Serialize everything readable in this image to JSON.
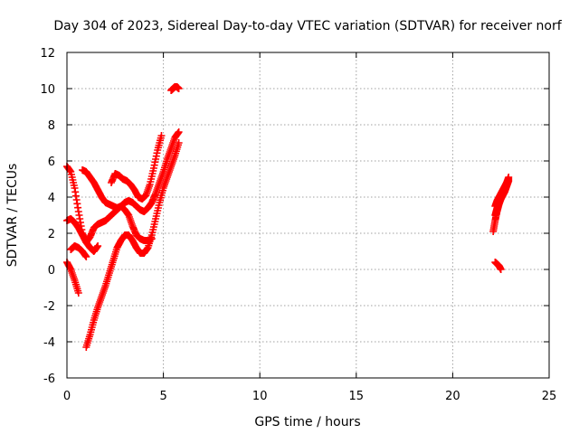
{
  "chart_data": {
    "type": "scatter",
    "title": "Day 304 of 2023, Sidereal Day-to-day VTEC variation (SDTVAR) for receiver norf",
    "xlabel": "GPS time / hours",
    "ylabel": "SDTVAR / TECUs",
    "xlim": [
      0,
      25
    ],
    "ylim": [
      -6,
      12
    ],
    "x_ticks": [
      0,
      5,
      10,
      15,
      20,
      25
    ],
    "y_ticks": [
      -6,
      -4,
      -2,
      0,
      2,
      4,
      6,
      8,
      10,
      12
    ],
    "x_tick_labels": [
      "0",
      "5",
      "10",
      "15",
      "20",
      "25"
    ],
    "y_tick_labels": [
      "-6",
      "-4",
      "-2",
      "0",
      "2",
      "4",
      "6",
      "8",
      "10",
      "12"
    ],
    "grid": true,
    "marker": "plus",
    "color": "#ff0000",
    "series": [
      {
        "x": [
          0.0,
          0.2,
          0.4,
          0.6,
          0.8,
          1.0,
          1.2,
          1.4,
          1.6,
          1.8,
          2.0,
          2.2,
          2.4,
          2.6,
          2.8,
          3.0,
          3.2,
          3.4,
          3.6,
          3.8,
          4.0,
          4.2,
          4.4,
          4.6,
          4.8,
          5.0,
          5.2,
          5.4,
          5.6,
          5.8
        ],
        "y": [
          5.7,
          5.4,
          4.5,
          3.2,
          2.0,
          1.5,
          1.8,
          2.3,
          2.5,
          2.6,
          2.7,
          2.9,
          3.1,
          3.3,
          3.5,
          3.7,
          3.8,
          3.7,
          3.5,
          3.3,
          3.2,
          3.4,
          3.7,
          4.2,
          4.8,
          5.4,
          6.1,
          6.7,
          7.3,
          7.6
        ]
      },
      {
        "x": [
          0.0,
          0.2,
          0.4,
          0.6,
          0.8,
          1.0,
          1.2,
          1.4,
          1.6
        ],
        "y": [
          2.7,
          2.8,
          2.6,
          2.3,
          1.9,
          1.5,
          1.2,
          1.0,
          1.3
        ]
      },
      {
        "x": [
          0.0,
          0.2,
          0.4,
          0.6
        ],
        "y": [
          0.4,
          0.0,
          -0.6,
          -1.3
        ]
      },
      {
        "x": [
          0.2,
          0.4,
          0.6,
          0.8,
          1.0
        ],
        "y": [
          1.1,
          1.3,
          1.2,
          1.0,
          0.7
        ]
      },
      {
        "x": [
          0.8,
          1.0,
          1.2,
          1.4,
          1.6,
          1.8,
          2.0,
          2.2,
          2.4,
          2.6,
          2.8,
          3.0,
          3.2,
          3.4,
          3.6,
          3.8,
          4.0,
          4.2,
          4.4
        ],
        "y": [
          5.5,
          5.4,
          5.1,
          4.8,
          4.4,
          4.0,
          3.7,
          3.6,
          3.5,
          3.4,
          3.5,
          3.3,
          3.0,
          2.4,
          1.9,
          1.7,
          1.6,
          1.6,
          1.7
        ]
      },
      {
        "x": [
          2.3,
          2.5,
          2.7,
          2.9,
          3.1,
          3.3,
          3.5,
          3.7,
          3.9,
          4.1,
          4.3,
          4.5,
          4.7,
          4.9
        ],
        "y": [
          4.8,
          5.3,
          5.2,
          5.0,
          4.9,
          4.7,
          4.4,
          4.0,
          3.9,
          4.1,
          4.7,
          5.6,
          6.6,
          7.4
        ]
      },
      {
        "x": [
          1.0,
          1.2,
          1.4,
          1.6,
          1.8,
          2.0,
          2.2,
          2.4,
          2.6,
          2.8,
          3.0,
          3.2,
          3.4,
          3.6,
          3.8,
          4.0,
          4.2,
          4.4,
          4.6,
          4.8,
          5.0,
          5.2,
          5.4,
          5.6,
          5.8
        ],
        "y": [
          -4.3,
          -3.6,
          -2.8,
          -2.1,
          -1.5,
          -0.9,
          -0.2,
          0.5,
          1.2,
          1.6,
          1.9,
          1.9,
          1.6,
          1.2,
          0.9,
          0.9,
          1.2,
          1.9,
          2.8,
          3.7,
          4.5,
          5.1,
          5.7,
          6.3,
          7.0
        ]
      },
      {
        "x": [
          5.4,
          5.5,
          5.6,
          5.7,
          5.8
        ],
        "y": [
          9.9,
          10.0,
          10.1,
          10.1,
          10.0
        ]
      },
      {
        "x": [
          22.1,
          22.2,
          22.3,
          22.4,
          22.5,
          22.6,
          22.7,
          22.8,
          22.9
        ],
        "y": [
          2.1,
          2.7,
          3.2,
          3.6,
          3.9,
          4.2,
          4.5,
          4.8,
          5.1
        ]
      },
      {
        "x": [
          22.2,
          22.3,
          22.4,
          22.5,
          22.6,
          22.7,
          22.8,
          22.9
        ],
        "y": [
          3.0,
          3.4,
          3.7,
          3.9,
          4.1,
          4.3,
          4.6,
          4.9
        ]
      },
      {
        "x": [
          22.2,
          22.3,
          22.4,
          22.5,
          22.6,
          22.7,
          22.8,
          22.9
        ],
        "y": [
          3.5,
          3.8,
          4.0,
          4.2,
          4.4,
          4.6,
          4.8,
          5.0
        ]
      },
      {
        "x": [
          22.2,
          22.3,
          22.4,
          22.5
        ],
        "y": [
          0.4,
          0.3,
          0.2,
          0.0
        ]
      }
    ]
  }
}
